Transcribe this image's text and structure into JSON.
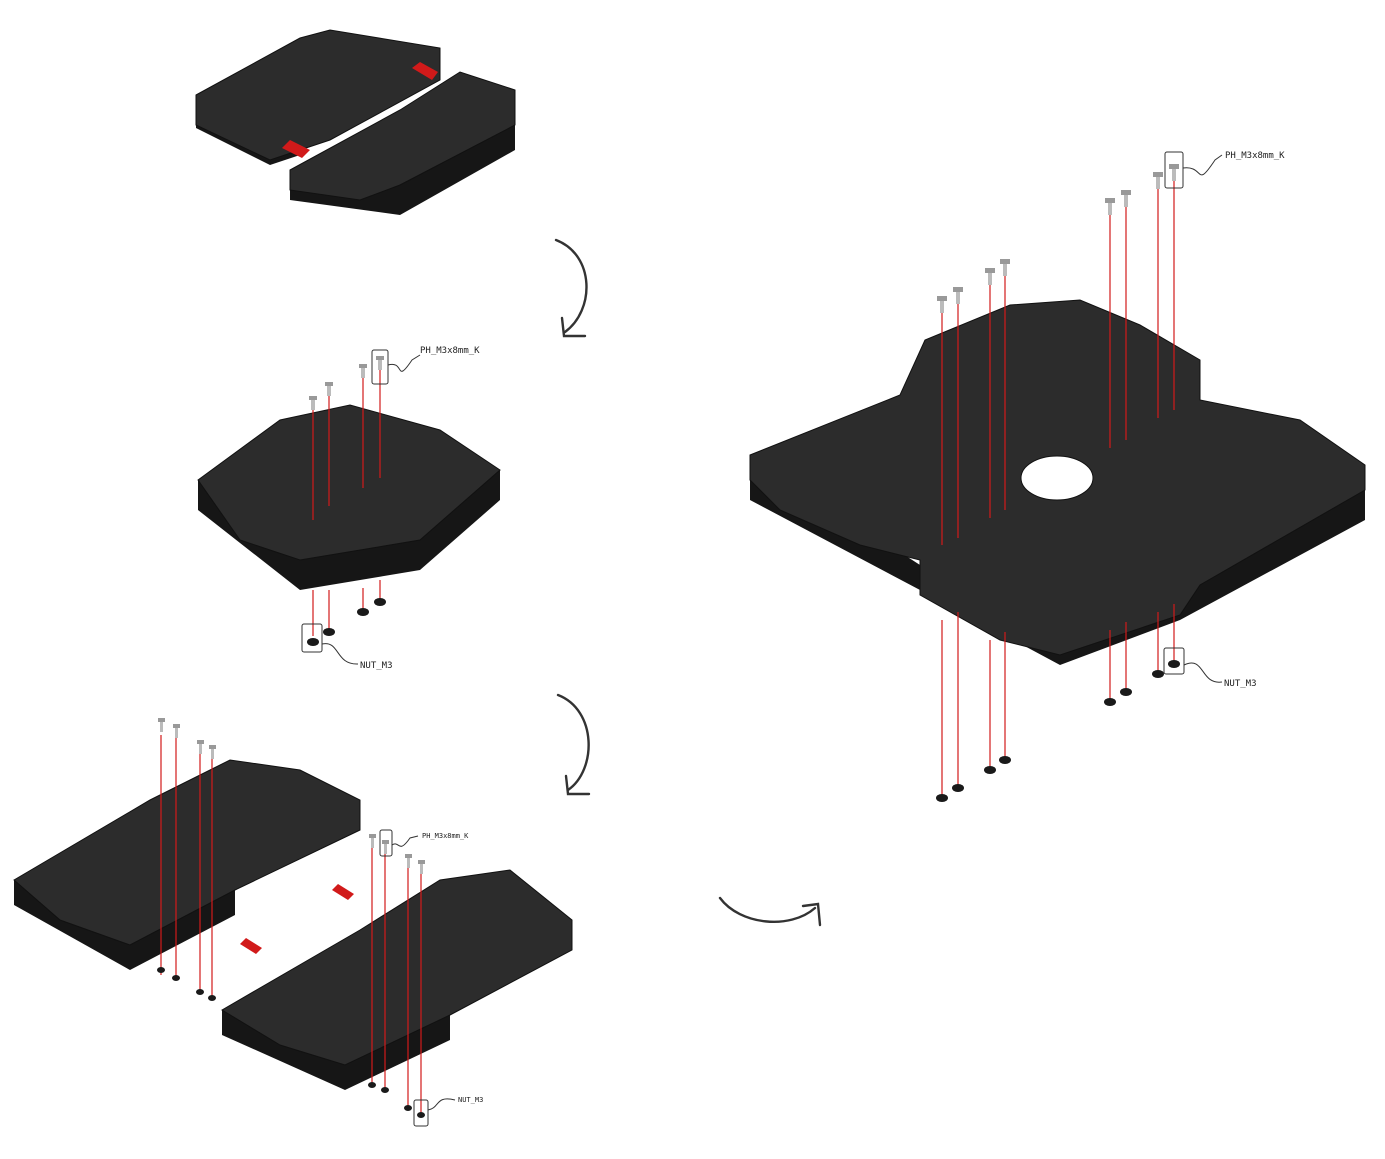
{
  "labels": {
    "screw": "PH_M3x8mm_K",
    "nut": "NUT_M3"
  },
  "colors": {
    "plate": "#2c2c2c",
    "plate_edge": "#161616",
    "arrow": "#d11a1a",
    "background": "#ffffff"
  },
  "icons": [
    "curved-arrow-icon",
    "push-arrow-icon",
    "screw-icon",
    "nut-icon"
  ]
}
